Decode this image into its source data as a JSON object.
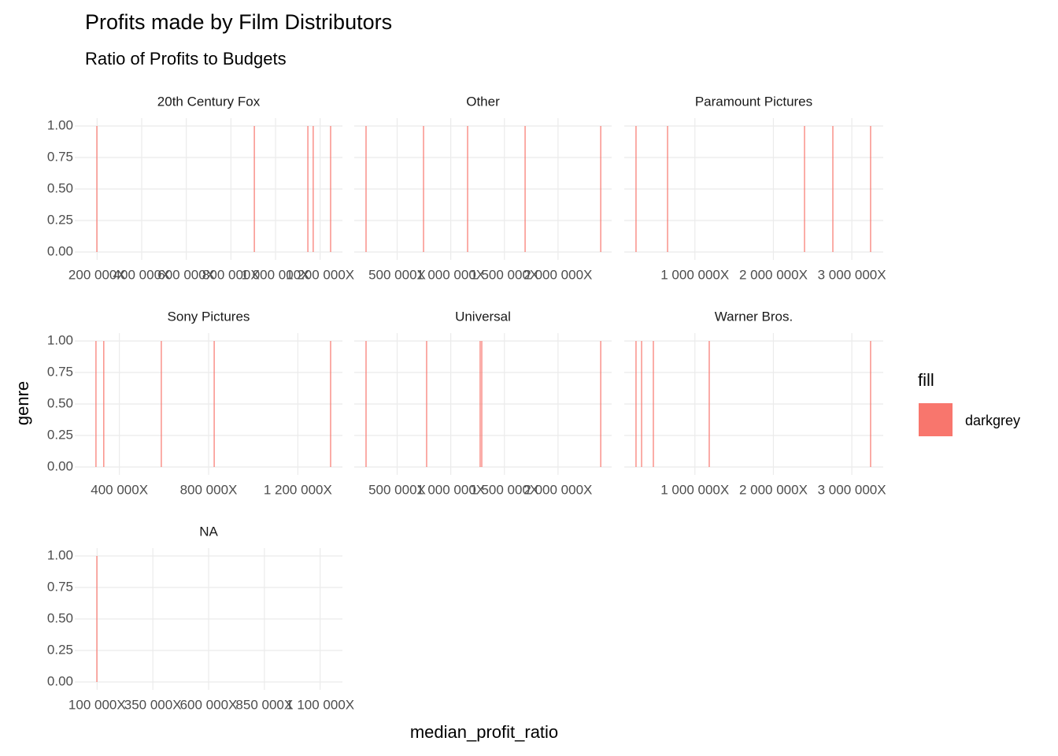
{
  "chart_data": {
    "type": "bar",
    "title": "Profits made by Film Distributors",
    "subtitle": "Ratio of Profits to Budgets",
    "x_label": "median_profit_ratio",
    "y_label": "genre",
    "legend_title": "fill",
    "series_name": "darkgrey",
    "color": "#F8766D",
    "grid": true,
    "ylim": [
      -0.0625,
      1.0625
    ],
    "yticks": [
      {
        "value": 0,
        "label": "0.00"
      },
      {
        "value": 0.25,
        "label": "0.25"
      },
      {
        "value": 0.5,
        "label": "0.50"
      },
      {
        "value": 0.75,
        "label": "0.75"
      },
      {
        "value": 1,
        "label": "1.00"
      }
    ],
    "facets": [
      {
        "label": "20th Century Fox",
        "xlim": [
          100000,
          1300000
        ],
        "xticks": [
          {
            "value": 200000,
            "label": "200 000X"
          },
          {
            "value": 400000,
            "label": "400 000X"
          },
          {
            "value": 600000,
            "label": "600 000X"
          },
          {
            "value": 800000,
            "label": "800 000X"
          },
          {
            "value": 1000000,
            "label": "1 000 000X"
          },
          {
            "value": 1200000,
            "label": "1 200 000X"
          }
        ],
        "x": [
          199000,
          905000,
          1145000,
          1169000,
          1247000
        ],
        "values": [
          1,
          1,
          1,
          1,
          1
        ]
      },
      {
        "label": "Other",
        "xlim": [
          100000,
          2500000
        ],
        "xticks": [
          {
            "value": 500000,
            "label": "500 000X"
          },
          {
            "value": 1000000,
            "label": "1 000 000X"
          },
          {
            "value": 1500000,
            "label": "1 500 000X"
          },
          {
            "value": 2000000,
            "label": "2 000 000X"
          }
        ],
        "x": [
          210000,
          746000,
          1157000,
          1693000,
          2398000
        ],
        "values": [
          1,
          1,
          1,
          1,
          1
        ]
      },
      {
        "label": "Paramount Pictures",
        "xlim": [
          100000,
          3400000
        ],
        "xticks": [
          {
            "value": 1000000,
            "label": "1 000 000X"
          },
          {
            "value": 2000000,
            "label": "2 000 000X"
          },
          {
            "value": 3000000,
            "label": "3 000 000X"
          }
        ],
        "x": [
          250000,
          652000,
          2397000,
          2758000,
          3239000
        ],
        "values": [
          1,
          1,
          1,
          1,
          1
        ]
      },
      {
        "label": "Sony Pictures",
        "xlim": [
          200000,
          1400000
        ],
        "xticks": [
          {
            "value": 400000,
            "label": "400 000X"
          },
          {
            "value": 800000,
            "label": "800 000X"
          },
          {
            "value": 1200000,
            "label": "1 200 000X"
          }
        ],
        "x": [
          295000,
          330000,
          588000,
          825000,
          1347000
        ],
        "values": [
          1,
          1,
          1,
          1,
          1
        ]
      },
      {
        "label": "Universal",
        "xlim": [
          100000,
          2500000
        ],
        "xticks": [
          {
            "value": 500000,
            "label": "500 000X"
          },
          {
            "value": 1000000,
            "label": "1 000 000X"
          },
          {
            "value": 1500000,
            "label": "1 500 000X"
          },
          {
            "value": 2000000,
            "label": "2 000 000X"
          }
        ],
        "x": [
          210000,
          775000,
          1274000,
          1289000,
          2398000
        ],
        "values": [
          1,
          1,
          1,
          1,
          1
        ]
      },
      {
        "label": "Warner Bros.",
        "xlim": [
          100000,
          3400000
        ],
        "xticks": [
          {
            "value": 1000000,
            "label": "1 000 000X"
          },
          {
            "value": 2000000,
            "label": "2 000 000X"
          },
          {
            "value": 3000000,
            "label": "3 000 000X"
          }
        ],
        "x": [
          250000,
          321000,
          471000,
          1183000,
          3239000
        ],
        "values": [
          1,
          1,
          1,
          1,
          1
        ]
      },
      {
        "label": "NA",
        "xlim": [
          0,
          1200000
        ],
        "xticks": [
          {
            "value": 100000,
            "label": "100 000X"
          },
          {
            "value": 350000,
            "label": "350 000X"
          },
          {
            "value": 600000,
            "label": "600 000X"
          },
          {
            "value": 850000,
            "label": "850 000X"
          },
          {
            "value": 1100000,
            "label": "1 100 000X"
          }
        ],
        "x": [
          99000
        ],
        "values": [
          1
        ]
      }
    ]
  }
}
